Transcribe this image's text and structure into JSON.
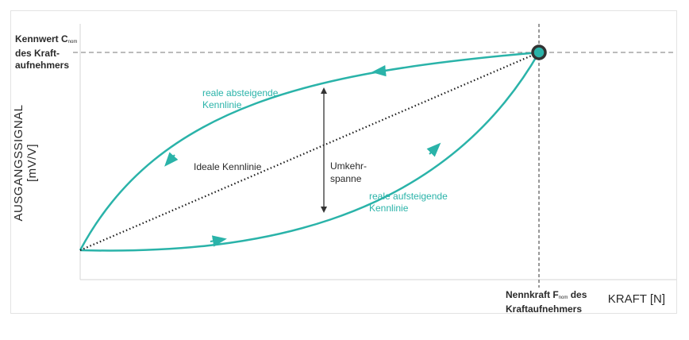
{
  "y_annotation": {
    "line1": "Kennwert C",
    "sub": "nom",
    "line2": "des Kraft-",
    "line3": "aufnehmers"
  },
  "y_axis_label": "AUSGANGSSIGNAL [mV/V]",
  "x_axis_label": "KRAFT [N]",
  "x_annotation": {
    "line1a": "Nennkraft F",
    "sub": "nom",
    "line1b": " des",
    "line2": "Kraftaufnehmers"
  },
  "curves": {
    "descending": {
      "line1": "reale absteigende",
      "line2": "Kennlinie"
    },
    "ascending": {
      "line1": "reale aufsteigende",
      "line2": "Kennlinie"
    },
    "ideal": "Ideale Kennlinie",
    "hysteresis": {
      "line1": "Umkehr-",
      "line2": "spanne"
    }
  },
  "colors": {
    "curve": "#2ab3a9",
    "text": "#2a2a2a",
    "ideal": "#1a1a1a",
    "dashed": "#777777"
  }
}
